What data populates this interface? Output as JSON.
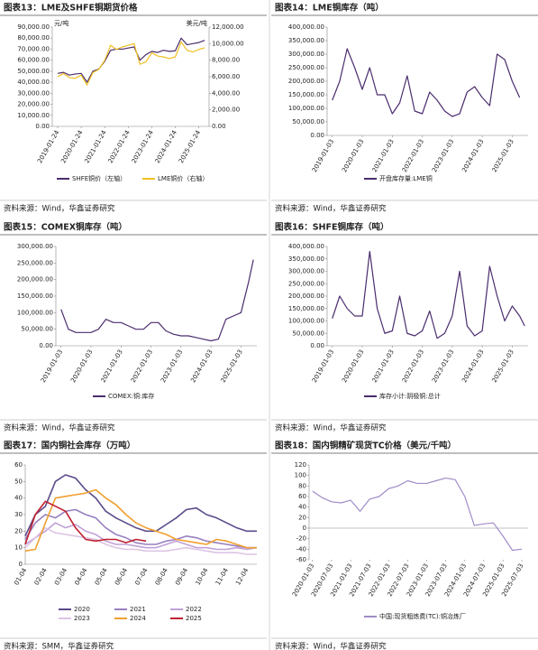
{
  "chart_data": [
    {
      "type": "line",
      "title": "图表13：LME及SHFE铜期货价格",
      "source": "资料来源：Wind，华鑫证券研究",
      "y_unit": "元/吨",
      "y2_unit": "美元/吨",
      "x": [
        "2019-01-24",
        "2019-04-24",
        "2019-07-24",
        "2019-10-24",
        "2020-01-24",
        "2020-04-24",
        "2020-07-24",
        "2020-10-24",
        "2021-01-24",
        "2021-04-24",
        "2021-07-24",
        "2021-10-24",
        "2022-01-24",
        "2022-04-24",
        "2022-07-24",
        "2022-10-24",
        "2023-01-24",
        "2023-04-24",
        "2023-07-24",
        "2023-10-24",
        "2024-01-24",
        "2024-04-24",
        "2024-07-24",
        "2024-10-24",
        "2025-01-24",
        "2025-04-24"
      ],
      "xlim": [
        "2018-11-01",
        "2025-07-01"
      ],
      "xticks": [
        "2019-01-24",
        "2020-01-24",
        "2021-01-24",
        "2022-01-24",
        "2023-01-24",
        "2024-01-24",
        "2025-01-24"
      ],
      "series": [
        {
          "name": "SHFE铜价（左轴）",
          "color": "#4b2d6e",
          "values": [
            48000,
            49000,
            46500,
            47500,
            48000,
            40000,
            50000,
            52000,
            59000,
            69000,
            70000,
            70000,
            71000,
            72000,
            60000,
            65000,
            68000,
            67000,
            69000,
            68000,
            68500,
            80000,
            74000,
            75000,
            76000,
            78000
          ]
        },
        {
          "name": "LME铜价（右轴）",
          "color": "#f0c020",
          "axis": "y2",
          "values": [
            6000,
            6400,
            5900,
            5800,
            6200,
            5000,
            6500,
            6900,
            8000,
            9800,
            9300,
            9600,
            9800,
            10000,
            7500,
            7800,
            8900,
            8500,
            8400,
            8200,
            8400,
            10200,
            9200,
            9000,
            9300,
            9500
          ]
        }
      ],
      "ylim": [
        0,
        90000
      ],
      "yticks": [
        {
          "value": 0,
          "label": "0.00"
        },
        {
          "value": 10000,
          "label": "10,000.00"
        },
        {
          "value": 20000,
          "label": "20,000.00"
        },
        {
          "value": 30000,
          "label": "30,000.00"
        },
        {
          "value": 40000,
          "label": "40,000.00"
        },
        {
          "value": 50000,
          "label": "50,000.00"
        },
        {
          "value": 60000,
          "label": "60,000.00"
        },
        {
          "value": 70000,
          "label": "70,000.00"
        },
        {
          "value": 80000,
          "label": "80,000.00"
        },
        {
          "value": 90000,
          "label": "90,000.00"
        }
      ],
      "y2lim": [
        0,
        12000
      ],
      "y2ticks": [
        {
          "value": 0,
          "label": "0.00"
        },
        {
          "value": 2000,
          "label": "2,000.00"
        },
        {
          "value": 4000,
          "label": "4,000.00"
        },
        {
          "value": 6000,
          "label": "6,000.00"
        },
        {
          "value": 8000,
          "label": "8,000.00"
        },
        {
          "value": 10000,
          "label": "10,000.00"
        },
        {
          "value": 12000,
          "label": "12,000.00"
        }
      ]
    },
    {
      "type": "line",
      "title": "图表14：LME铜库存（吨）",
      "source": "资料来源：Wind，华鑫证券研究",
      "x": [
        "2019-01-03",
        "2019-04-03",
        "2019-07-03",
        "2019-10-03",
        "2020-01-03",
        "2020-04-03",
        "2020-07-03",
        "2020-10-03",
        "2021-01-03",
        "2021-04-03",
        "2021-07-03",
        "2021-10-03",
        "2022-01-03",
        "2022-04-03",
        "2022-07-03",
        "2022-10-03",
        "2023-01-03",
        "2023-04-03",
        "2023-07-03",
        "2023-10-03",
        "2024-01-03",
        "2024-04-03",
        "2024-07-03",
        "2024-10-03",
        "2025-01-03",
        "2025-04-03"
      ],
      "xlim": [
        "2018-11-01",
        "2025-07-15"
      ],
      "xticks": [
        "2019-01-03",
        "2020-01-03",
        "2021-01-03",
        "2022-01-03",
        "2023-01-03",
        "2024-01-03",
        "2025-01-03"
      ],
      "series": [
        {
          "name": "开盘库存量:LME铜",
          "color": "#4b2d6e",
          "values": [
            130000,
            200000,
            320000,
            250000,
            170000,
            250000,
            150000,
            150000,
            80000,
            120000,
            220000,
            90000,
            80000,
            160000,
            130000,
            90000,
            70000,
            80000,
            160000,
            180000,
            140000,
            110000,
            300000,
            280000,
            200000,
            140000
          ]
        }
      ],
      "ylim": [
        0,
        400000
      ],
      "yticks": [
        {
          "value": 0,
          "label": "0.00"
        },
        {
          "value": 50000,
          "label": "50,000.00"
        },
        {
          "value": 100000,
          "label": "100,000.00"
        },
        {
          "value": 150000,
          "label": "150,000.00"
        },
        {
          "value": 200000,
          "label": "200,000.00"
        },
        {
          "value": 250000,
          "label": "250,000.00"
        },
        {
          "value": 300000,
          "label": "300,000.00"
        },
        {
          "value": 350000,
          "label": "350,000.00"
        },
        {
          "value": 400000,
          "label": "400,000.00"
        }
      ]
    },
    {
      "type": "line",
      "title": "图表15：COMEX铜库存（吨）",
      "source": "资料来源：Wind，华鑫证券研究",
      "x": [
        "2019-01-03",
        "2019-04-03",
        "2019-07-03",
        "2019-10-03",
        "2020-01-03",
        "2020-04-03",
        "2020-07-03",
        "2020-10-03",
        "2021-01-03",
        "2021-04-03",
        "2021-07-03",
        "2021-10-03",
        "2022-01-03",
        "2022-04-03",
        "2022-07-03",
        "2022-10-03",
        "2023-01-03",
        "2023-04-03",
        "2023-07-03",
        "2023-10-03",
        "2024-01-03",
        "2024-04-03",
        "2024-07-03",
        "2024-10-03",
        "2025-01-03",
        "2025-04-03",
        "2025-06-03"
      ],
      "xlim": [
        "2018-11-01",
        "2025-07-15"
      ],
      "xticks": [
        "2019-01-03",
        "2020-01-03",
        "2021-01-03",
        "2022-01-03",
        "2023-01-03",
        "2024-01-03",
        "2025-01-03"
      ],
      "series": [
        {
          "name": "COMEX:铜:库存",
          "color": "#4b2d6e",
          "values": [
            110000,
            50000,
            40000,
            40000,
            40000,
            50000,
            80000,
            70000,
            70000,
            60000,
            50000,
            50000,
            70000,
            70000,
            45000,
            35000,
            30000,
            30000,
            25000,
            20000,
            15000,
            20000,
            80000,
            90000,
            100000,
            190000,
            260000
          ]
        }
      ],
      "ylim": [
        0,
        300000
      ],
      "yticks": [
        {
          "value": 0,
          "label": "0.00"
        },
        {
          "value": 50000,
          "label": "50,000.00"
        },
        {
          "value": 100000,
          "label": "100,000.00"
        },
        {
          "value": 150000,
          "label": "150,000.00"
        },
        {
          "value": 200000,
          "label": "200,000.00"
        },
        {
          "value": 250000,
          "label": "250,000.00"
        },
        {
          "value": 300000,
          "label": "300,000.00"
        }
      ]
    },
    {
      "type": "line",
      "title": "图表16：SHFE铜库存（吨）",
      "source": "资料来源：Wind，华鑫证券研究",
      "x": [
        "2019-01-03",
        "2019-04-03",
        "2019-07-03",
        "2019-10-03",
        "2020-01-03",
        "2020-04-03",
        "2020-07-03",
        "2020-10-03",
        "2021-01-03",
        "2021-04-03",
        "2021-07-03",
        "2021-10-03",
        "2022-01-03",
        "2022-04-03",
        "2022-07-03",
        "2022-10-03",
        "2023-01-03",
        "2023-04-03",
        "2023-07-03",
        "2023-10-03",
        "2024-01-03",
        "2024-04-03",
        "2024-07-03",
        "2024-10-03",
        "2025-01-03",
        "2025-04-03",
        "2025-06-03"
      ],
      "xlim": [
        "2018-11-01",
        "2025-07-15"
      ],
      "xticks": [
        "2019-01-03",
        "2020-01-03",
        "2021-01-03",
        "2022-01-03",
        "2023-01-03",
        "2024-01-03",
        "2025-01-03"
      ],
      "series": [
        {
          "name": "库存小计:阴极铜:总计",
          "color": "#4b2d6e",
          "values": [
            110000,
            200000,
            150000,
            120000,
            120000,
            380000,
            150000,
            50000,
            60000,
            200000,
            50000,
            40000,
            60000,
            140000,
            30000,
            50000,
            120000,
            300000,
            80000,
            40000,
            60000,
            320000,
            200000,
            100000,
            160000,
            120000,
            80000
          ]
        }
      ],
      "ylim": [
        0,
        400000
      ],
      "yticks": [
        {
          "value": 0,
          "label": "0.00"
        },
        {
          "value": 50000,
          "label": "50,000.00"
        },
        {
          "value": 100000,
          "label": "100,000.00"
        },
        {
          "value": 150000,
          "label": "150,000.00"
        },
        {
          "value": 200000,
          "label": "200,000.00"
        },
        {
          "value": 250000,
          "label": "250,000.00"
        },
        {
          "value": 300000,
          "label": "300,000.00"
        },
        {
          "value": 350000,
          "label": "350,000.00"
        },
        {
          "value": 400000,
          "label": "400,000.00"
        }
      ]
    },
    {
      "type": "line",
      "title": "图表17：国内铜社会库存（万吨）",
      "source": "资料来源：SMM，华鑫证券研究",
      "categories": [
        "01-04",
        null,
        "02-04",
        null,
        "03-04",
        null,
        "04-04",
        null,
        "05-04",
        null,
        "06-04",
        null,
        "07-04",
        null,
        "08-04",
        null,
        "09-04",
        null,
        "10-04",
        null,
        "11-04",
        null,
        "12-04",
        null
      ],
      "series": [
        {
          "name": "2020",
          "color": "#5b4a8a",
          "values": [
            17,
            30,
            35,
            50,
            54,
            52,
            45,
            40,
            32,
            28,
            25,
            22,
            20,
            20,
            24,
            28,
            33,
            34,
            30,
            28,
            25,
            22,
            20,
            20
          ]
        },
        {
          "name": "2021",
          "color": "#9880c0",
          "values": [
            15,
            25,
            30,
            28,
            32,
            33,
            30,
            28,
            22,
            18,
            16,
            13,
            12,
            12,
            14,
            15,
            17,
            16,
            14,
            13,
            12,
            11,
            10,
            10
          ]
        },
        {
          "name": "2022",
          "color": "#c0a0d8",
          "values": [
            12,
            16,
            20,
            25,
            22,
            24,
            20,
            18,
            14,
            12,
            12,
            11,
            10,
            10,
            12,
            14,
            12,
            10,
            10,
            9,
            9,
            10,
            9,
            10
          ]
        },
        {
          "name": "2023",
          "color": "#dcc4e4",
          "values": [
            10,
            16,
            22,
            19,
            18,
            17,
            16,
            15,
            12,
            10,
            9,
            9,
            8,
            8,
            8,
            9,
            10,
            9,
            8,
            7,
            7,
            7,
            6,
            6
          ]
        },
        {
          "name": "2024",
          "color": "#f0a030",
          "values": [
            8,
            9,
            25,
            40,
            41,
            42,
            43,
            45,
            40,
            36,
            30,
            25,
            22,
            20,
            18,
            15,
            14,
            13,
            12,
            15,
            14,
            12,
            10,
            10
          ]
        },
        {
          "name": "2025",
          "color": "#c02030",
          "values": [
            12,
            30,
            38,
            35,
            32,
            22,
            15,
            14,
            15,
            15,
            13,
            15,
            14,
            null,
            null,
            null,
            null,
            null,
            null,
            null,
            null,
            null,
            null,
            null
          ]
        }
      ],
      "ylim": [
        0,
        60
      ],
      "yticks": [
        0,
        10,
        20,
        30,
        40,
        50,
        60
      ]
    },
    {
      "type": "line",
      "title": "图表18：国内铜精矿现货TC价格（美元/千吨）",
      "source": "资料来源：Wind，华鑫证券研究",
      "x": [
        "2020-01-03",
        "2020-04-03",
        "2020-07-03",
        "2020-10-03",
        "2021-01-03",
        "2021-04-03",
        "2021-07-03",
        "2021-10-03",
        "2022-01-03",
        "2022-04-03",
        "2022-07-03",
        "2022-10-03",
        "2023-01-03",
        "2023-04-03",
        "2023-07-03",
        "2023-10-03",
        "2024-01-03",
        "2024-04-03",
        "2024-07-03",
        "2024-10-03",
        "2025-01-03",
        "2025-04-03",
        "2025-07-03"
      ],
      "xlim": [
        "2019-12-01",
        "2025-09-01"
      ],
      "xticks": [
        "2020-01-03",
        "2020-07-03",
        "2021-01-03",
        "2021-07-03",
        "2022-01-03",
        "2022-07-03",
        "2023-01-03",
        "2023-07-03",
        "2024-01-03",
        "2024-07-03",
        "2025-01-03",
        "2025-07-03"
      ],
      "series": [
        {
          "name": "中国:现货粗炼费(TC):铜冶炼厂",
          "color": "#a08cc8",
          "values": [
            70,
            58,
            50,
            48,
            53,
            32,
            55,
            60,
            75,
            80,
            90,
            85,
            85,
            90,
            95,
            92,
            60,
            5,
            8,
            10,
            -15,
            -42,
            -40
          ]
        }
      ],
      "ylim": [
        -60,
        120
      ],
      "yticks": [
        -60,
        -40,
        -20,
        0,
        20,
        40,
        60,
        80,
        100,
        120
      ]
    }
  ]
}
